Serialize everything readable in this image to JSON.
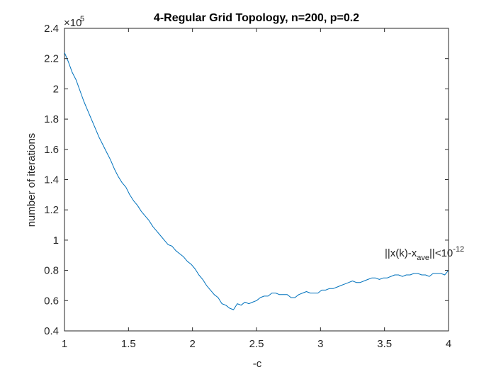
{
  "chart_data": {
    "type": "line",
    "title": "4-Regular Grid Topology, n=200, p=0.2",
    "xlabel": "-c",
    "ylabel": "number of iterations",
    "xlim": [
      1,
      4
    ],
    "ylim": [
      40000,
      240000
    ],
    "xticks": [
      1,
      1.5,
      2,
      2.5,
      3,
      3.5,
      4
    ],
    "xtick_labels": [
      "1",
      "1.5",
      "2",
      "2.5",
      "3",
      "3.5",
      "4"
    ],
    "yticks": [
      40000,
      60000,
      80000,
      100000,
      120000,
      140000,
      160000,
      180000,
      200000,
      220000,
      240000
    ],
    "ytick_labels": [
      "0.4",
      "0.6",
      "0.8",
      "1",
      "1.2",
      "1.4",
      "1.6",
      "1.8",
      "2",
      "2.2",
      "2.4"
    ],
    "y_exponent": {
      "base": "×10",
      "power": "5"
    },
    "grid": false,
    "box": true,
    "line_color": "#0072BD",
    "annotation": {
      "parts": [
        "||x(k)-x",
        "ave",
        "||<10",
        "-12"
      ],
      "x": 3.5,
      "y": 86000
    },
    "series": [
      {
        "x": [
          1.0,
          1.03,
          1.06,
          1.09,
          1.12,
          1.15,
          1.18,
          1.21,
          1.24,
          1.27,
          1.3,
          1.33,
          1.36,
          1.39,
          1.42,
          1.45,
          1.48,
          1.51,
          1.54,
          1.57,
          1.6,
          1.63,
          1.66,
          1.69,
          1.72,
          1.75,
          1.78,
          1.81,
          1.84,
          1.87,
          1.9,
          1.93,
          1.96,
          1.99,
          2.02,
          2.05,
          2.08,
          2.11,
          2.14,
          2.17,
          2.2,
          2.23,
          2.26,
          2.29,
          2.32,
          2.35,
          2.38,
          2.41,
          2.44,
          2.47,
          2.5,
          2.53,
          2.56,
          2.59,
          2.62,
          2.65,
          2.68,
          2.71,
          2.74,
          2.77,
          2.8,
          2.83,
          2.86,
          2.89,
          2.92,
          2.95,
          2.98,
          3.01,
          3.04,
          3.07,
          3.1,
          3.13,
          3.16,
          3.19,
          3.22,
          3.25,
          3.28,
          3.31,
          3.34,
          3.37,
          3.4,
          3.43,
          3.46,
          3.49,
          3.52,
          3.55,
          3.58,
          3.61,
          3.64,
          3.67,
          3.7,
          3.73,
          3.76,
          3.79,
          3.82,
          3.85,
          3.88,
          3.91,
          3.94,
          3.97,
          4.0
        ],
        "y": [
          224000,
          218000,
          211000,
          206000,
          199000,
          192000,
          186000,
          180000,
          174000,
          168000,
          163000,
          158000,
          153000,
          147000,
          142000,
          138000,
          135000,
          130000,
          126000,
          123000,
          119000,
          116000,
          113000,
          109000,
          106000,
          103000,
          100000,
          97000,
          96000,
          93000,
          91000,
          89000,
          86000,
          84000,
          81000,
          77000,
          74000,
          70000,
          67000,
          64000,
          62000,
          58000,
          57000,
          55000,
          54000,
          58000,
          57000,
          59000,
          58000,
          59000,
          60000,
          62000,
          63000,
          63000,
          65000,
          65000,
          64000,
          64000,
          64000,
          62000,
          62000,
          64000,
          65000,
          66000,
          65000,
          65000,
          65000,
          67000,
          67000,
          68000,
          68000,
          69000,
          70000,
          71000,
          72000,
          73000,
          72000,
          72000,
          73000,
          74000,
          75000,
          75000,
          74000,
          75000,
          75000,
          76000,
          77000,
          77000,
          76000,
          77000,
          77000,
          78000,
          78000,
          77000,
          77000,
          76000,
          78000,
          78000,
          78000,
          77000,
          80000
        ]
      }
    ]
  }
}
